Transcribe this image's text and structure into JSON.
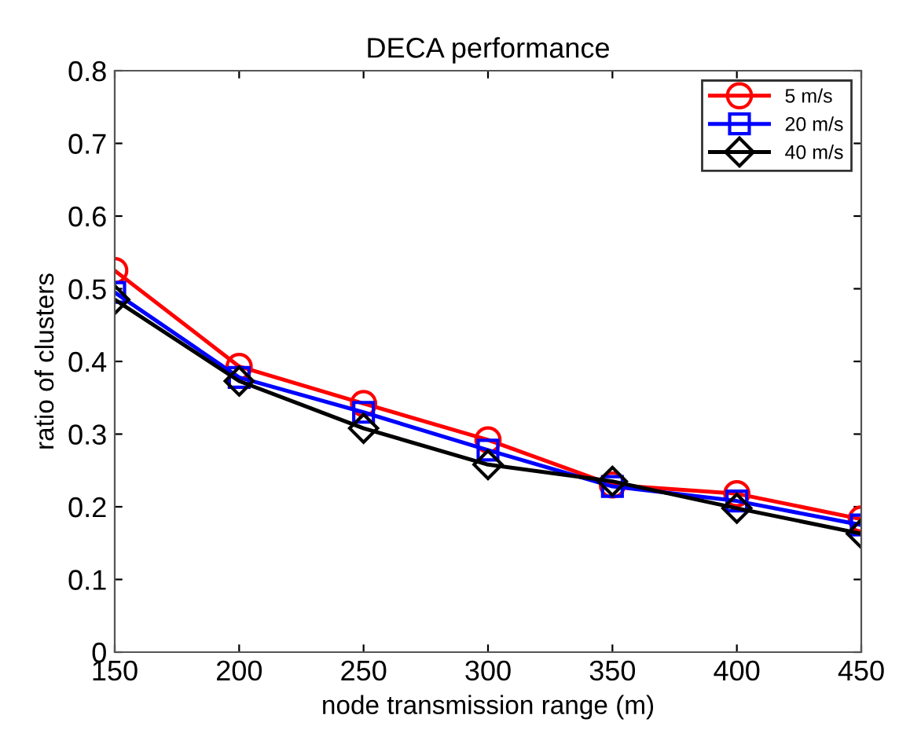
{
  "chart_data": {
    "type": "line",
    "title": "DECA performance",
    "xlabel": "node transmission range (m)",
    "ylabel": "ratio of clusters",
    "x": [
      150,
      200,
      250,
      300,
      350,
      400,
      450
    ],
    "series": [
      {
        "name": "5 m/s",
        "color": "#ff0000",
        "marker": "circle",
        "values": [
          0.525,
          0.393,
          0.342,
          0.292,
          0.23,
          0.218,
          0.183
        ]
      },
      {
        "name": "20 m/s",
        "color": "#0000ff",
        "marker": "square",
        "values": [
          0.495,
          0.378,
          0.33,
          0.278,
          0.228,
          0.208,
          0.175
        ]
      },
      {
        "name": "40 m/s",
        "color": "#000000",
        "marker": "diamond",
        "values": [
          0.485,
          0.373,
          0.308,
          0.258,
          0.235,
          0.198,
          0.163
        ]
      }
    ],
    "xlim": [
      150,
      450
    ],
    "xticks": [
      150,
      200,
      250,
      300,
      350,
      400,
      450
    ],
    "ylim": [
      0,
      0.8
    ],
    "yticks": [
      0,
      0.1,
      0.2,
      0.3,
      0.4,
      0.5,
      0.6,
      0.7,
      0.8
    ],
    "legend": "top right",
    "line_style": "solid",
    "grid": false
  }
}
